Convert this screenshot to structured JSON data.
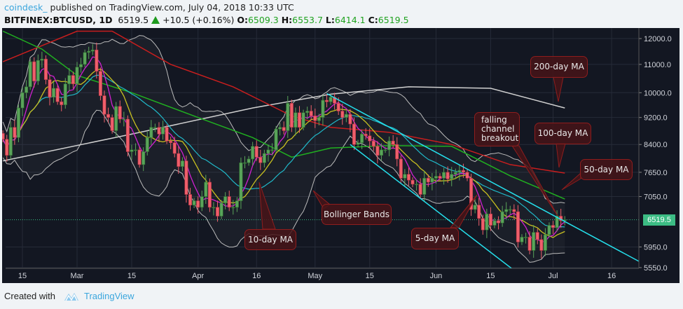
{
  "header": {
    "user": "coindesk_",
    "published": "published on TradingView.com, July 04, 2018 10:33 UTC",
    "symbol": "BITFINEX:BTCUSD, 1D",
    "last": "6519.5",
    "change": "+10.5 (+0.16%)",
    "o_label": "O:",
    "o": "6509.3",
    "h_label": "H:",
    "h": "6553.7",
    "l_label": "L:",
    "l": "6414.1",
    "c_label": "C:",
    "c": "6519.5"
  },
  "footer": {
    "created_with": "Created with",
    "brand": "TradingView"
  },
  "colors": {
    "background": "#131722",
    "up": "#5aa45a",
    "down": "#ef5f6b",
    "ma5": "#d020d0",
    "ma10": "#c8c020",
    "ma20": "#20b8c8",
    "ma50": "#20b020",
    "ma100": "#c81e1e",
    "ma200": "#d0d0d0",
    "bollinger": "#bcbcbc",
    "channel": "#25e0ec",
    "price_tag": "#3cbc84"
  },
  "annotations": {
    "ma10": "10-day MA",
    "bollinger": "Bollinger Bands",
    "ma5": "5-day MA",
    "breakout": "falling channel breakout",
    "ma200": "200-day MA",
    "ma100": "100-day MA",
    "ma50": "50-day MA"
  },
  "chart_data": {
    "type": "candlestick",
    "title": "",
    "scale": "log",
    "ylim": [
      5550,
      12000
    ],
    "grid": true,
    "y_ticks": [
      "12000.0",
      "11000.0",
      "10000.0",
      "9200.0",
      "8400.0",
      "7650.0",
      "7050.0",
      "5950.0",
      "5550.0"
    ],
    "y_tick_values": [
      12000,
      11000,
      10000,
      9200,
      8400,
      7650,
      7050,
      5950,
      5550
    ],
    "x_ticks": [
      {
        "label": "15",
        "date": "2018-02-15"
      },
      {
        "label": "Mar",
        "date": "2018-03-01"
      },
      {
        "label": "15",
        "date": "2018-03-15"
      },
      {
        "label": "Apr",
        "date": "2018-04-01"
      },
      {
        "label": "16",
        "date": "2018-04-16"
      },
      {
        "label": "May",
        "date": "2018-05-01"
      },
      {
        "label": "15",
        "date": "2018-05-15"
      },
      {
        "label": "Jun",
        "date": "2018-06-01"
      },
      {
        "label": "15",
        "date": "2018-06-15"
      },
      {
        "label": "Jul",
        "date": "2018-07-01"
      },
      {
        "label": "16",
        "date": "2018-07-16"
      }
    ],
    "last_price_label": "6519.5",
    "last_price": 6519.5,
    "start_date": "2018-02-10",
    "closes": [
      8550,
      8100,
      8900,
      8600,
      9500,
      10000,
      10200,
      11100,
      10400,
      11150,
      11200,
      10450,
      9850,
      10150,
      9700,
      9600,
      10300,
      10600,
      10300,
      10900,
      11000,
      11450,
      11500,
      11550,
      10750,
      9900,
      9300,
      9200,
      8800,
      9550,
      9150,
      9150,
      8200,
      8250,
      8250,
      7850,
      8200,
      8600,
      8900,
      8900,
      8700,
      8900,
      8500,
      8450,
      8150,
      7800,
      7950,
      7100,
      6850,
      6950,
      6800,
      7050,
      7400,
      6800,
      6800,
      6600,
      6900,
      7050,
      6800,
      6800,
      6950,
      7900,
      7900,
      8000,
      8350,
      8050,
      7900,
      8150,
      8250,
      8250,
      8850,
      8900,
      8800,
      9650,
      8900,
      9350,
      8900,
      9350,
      9400,
      9250,
      9100,
      9200,
      9750,
      9700,
      9850,
      9650,
      9400,
      9200,
      9300,
      9000,
      8400,
      8450,
      8700,
      8650,
      8500,
      8350,
      8100,
      8250,
      8250,
      8500,
      8400,
      8000,
      7500,
      7600,
      7450,
      7350,
      7350,
      7100,
      7500,
      7400,
      7500,
      7550,
      7500,
      7650,
      7480,
      7600,
      7650,
      7700,
      7650,
      7500,
      6750,
      6850,
      6550,
      6300,
      6650,
      6400,
      6500,
      6450,
      6700,
      6750,
      6750,
      6700,
      6050,
      6150,
      6150,
      5880,
      6250,
      6100,
      5880,
      6200,
      6400,
      6350,
      6600,
      6500,
      6519.5
    ],
    "ma200": [
      [
        "2018-02-10",
        7950
      ],
      [
        "2018-03-15",
        8700
      ],
      [
        "2018-04-15",
        9500
      ],
      [
        "2018-05-05",
        9950
      ],
      [
        "2018-05-25",
        10200
      ],
      [
        "2018-06-15",
        10150
      ],
      [
        "2018-07-04",
        9500
      ]
    ],
    "ma100": [
      [
        "2018-02-10",
        11100
      ],
      [
        "2018-03-01",
        12300
      ],
      [
        "2018-03-10",
        12300
      ],
      [
        "2018-03-25",
        11000
      ],
      [
        "2018-04-10",
        10200
      ],
      [
        "2018-04-25",
        9250
      ],
      [
        "2018-05-05",
        8900
      ],
      [
        "2018-05-20",
        8750
      ],
      [
        "2018-06-05",
        8400
      ],
      [
        "2018-06-20",
        7850
      ],
      [
        "2018-07-04",
        7630
      ]
    ],
    "ma50": [
      [
        "2018-02-10",
        12300
      ],
      [
        "2018-02-20",
        11580
      ],
      [
        "2018-03-01",
        10600
      ],
      [
        "2018-03-15",
        10000
      ],
      [
        "2018-04-01",
        9200
      ],
      [
        "2018-04-15",
        8600
      ],
      [
        "2018-04-25",
        8050
      ],
      [
        "2018-05-05",
        8300
      ],
      [
        "2018-05-20",
        8370
      ],
      [
        "2018-06-05",
        8350
      ],
      [
        "2018-06-20",
        7560
      ],
      [
        "2018-07-04",
        6990
      ]
    ],
    "channel_upper": [
      [
        "2018-05-04",
        9970
      ],
      [
        "2018-07-26",
        5550
      ]
    ],
    "channel_lower": [
      [
        "2018-05-10",
        8400
      ],
      [
        "2018-06-21",
        5500
      ]
    ]
  }
}
